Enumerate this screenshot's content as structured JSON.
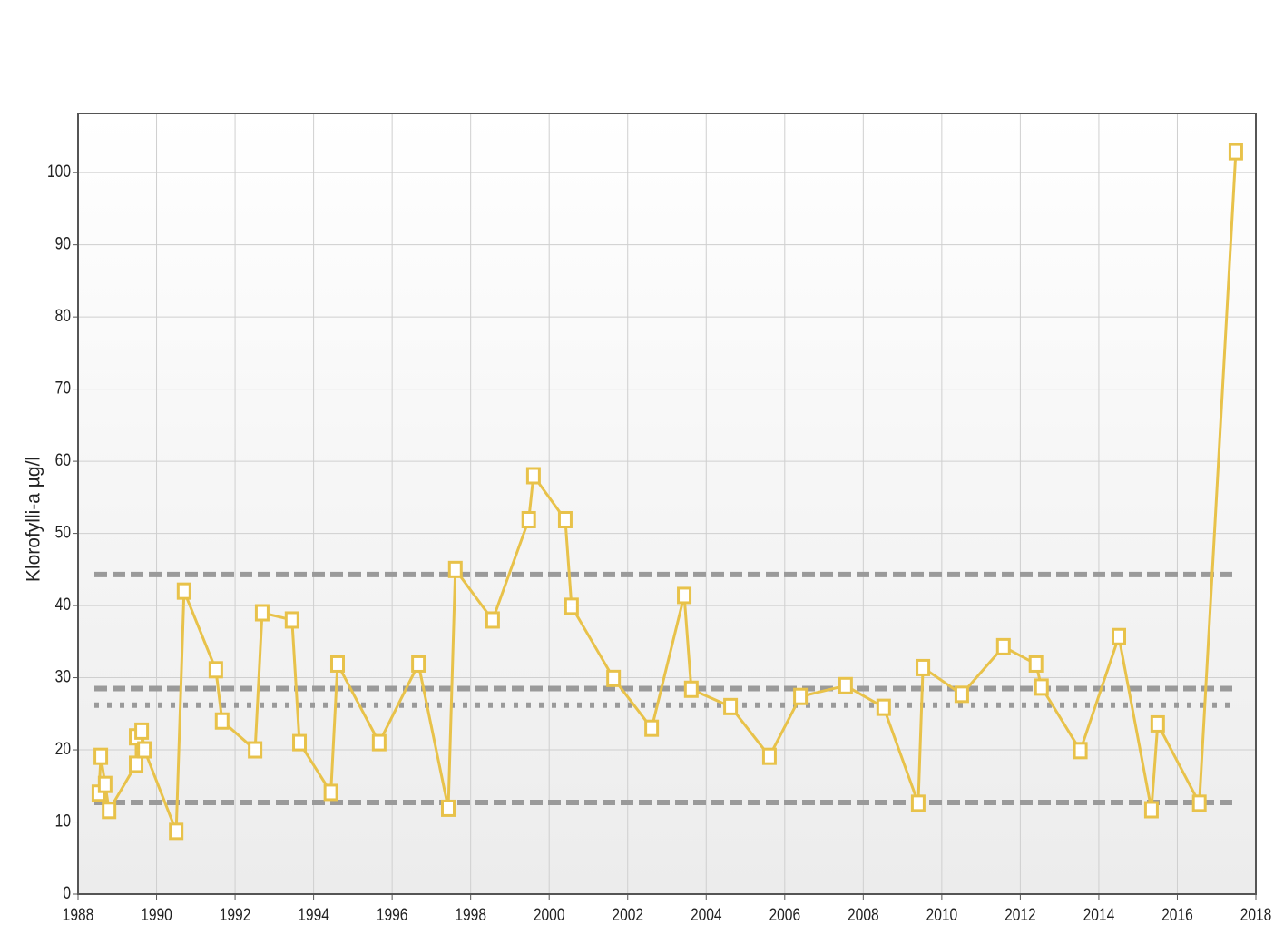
{
  "chart_data": {
    "type": "line",
    "y_label": "Klorofylli-a µg/l",
    "xlim": [
      1988,
      2018
    ],
    "ylim": [
      0,
      108.2
    ],
    "xticks": [
      1988,
      1990,
      1992,
      1994,
      1996,
      1998,
      2000,
      2002,
      2004,
      2006,
      2008,
      2010,
      2012,
      2014,
      2016,
      2018
    ],
    "yticks": [
      0,
      10,
      20,
      30,
      40,
      50,
      60,
      70,
      80,
      90,
      100
    ],
    "grid": true,
    "reference_lines": [
      {
        "value": 44.3,
        "style": "dashed"
      },
      {
        "value": 28.5,
        "style": "dashed"
      },
      {
        "value": 26.2,
        "style": "dotted"
      },
      {
        "value": 12.7,
        "style": "dashed"
      }
    ],
    "reference_color": "#9a9a9a",
    "series": [
      {
        "color": "#e8c24a",
        "x": [
          1988.53,
          1988.58,
          1988.69,
          1988.79,
          1989.48,
          1989.48,
          1989.62,
          1989.69,
          1990.5,
          1990.7,
          1991.51,
          1991.67,
          1992.51,
          1992.69,
          1993.45,
          1993.64,
          1994.44,
          1994.61,
          1995.67,
          1996.67,
          1997.43,
          1997.61,
          1998.56,
          1999.48,
          1999.6,
          2000.41,
          2000.57,
          2001.64,
          2002.61,
          2003.44,
          2003.62,
          2004.62,
          2005.61,
          2006.4,
          2007.55,
          2008.52,
          2009.4,
          2009.52,
          2010.51,
          2011.57,
          2012.4,
          2012.54,
          2013.53,
          2014.51,
          2015.34,
          2015.5,
          2016.56,
          2017.49
        ],
        "values": [
          14.0,
          19.1,
          15.2,
          11.6,
          18.0,
          21.8,
          22.6,
          20.0,
          8.7,
          42.0,
          31.1,
          24.0,
          20.0,
          39.0,
          38.0,
          21.0,
          14.1,
          31.9,
          21.0,
          31.9,
          11.9,
          45.0,
          38.0,
          51.9,
          58.0,
          51.9,
          39.9,
          29.9,
          23.0,
          41.4,
          28.4,
          26.0,
          19.1,
          27.4,
          28.9,
          25.9,
          12.6,
          31.4,
          27.7,
          34.3,
          31.9,
          28.7,
          19.9,
          35.7,
          11.7,
          23.6,
          12.6,
          102.9
        ]
      }
    ]
  }
}
